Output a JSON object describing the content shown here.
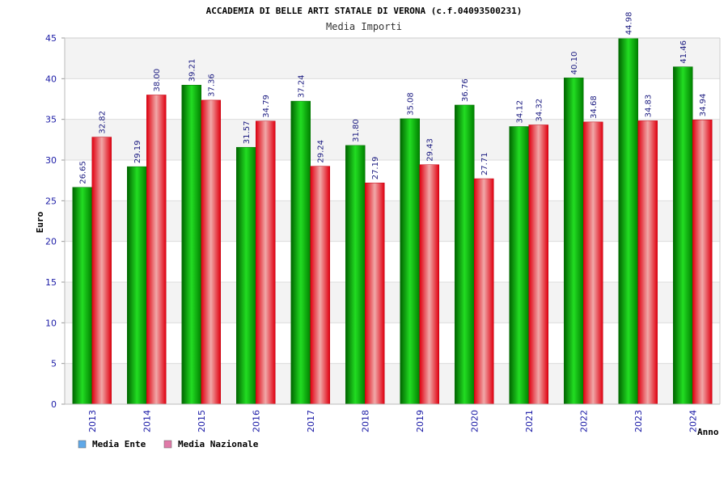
{
  "chart_data": {
    "type": "bar",
    "title": "ACCADEMIA DI BELLE ARTI STATALE DI VERONA (c.f.04093500231)",
    "subtitle": "Media Importi",
    "xlabel": "Anno",
    "ylabel": "Euro",
    "ylim": [
      0,
      45
    ],
    "yticks": [
      0,
      5,
      10,
      15,
      20,
      25,
      30,
      35,
      40,
      45
    ],
    "grid": true,
    "legend_position": "bottom-left",
    "categories": [
      "2013",
      "2014",
      "2015",
      "2016",
      "2017",
      "2018",
      "2019",
      "2020",
      "2021",
      "2022",
      "2023",
      "2024"
    ],
    "series": [
      {
        "name": "Media Ente",
        "color": "#00a800",
        "legend_color": "#5fa8e8",
        "values": [
          26.65,
          29.19,
          39.21,
          31.57,
          37.24,
          31.8,
          35.08,
          36.76,
          34.12,
          40.1,
          44.98,
          41.46
        ],
        "labels": [
          "26.65",
          "29.19",
          "39.21",
          "31.57",
          "37.24",
          "31.80",
          "35.08",
          "36.76",
          "34.12",
          "40.10",
          "44.98",
          "41.46"
        ]
      },
      {
        "name": "Media Nazionale",
        "color": "#e8101a",
        "legend_color": "#e07aa8",
        "values": [
          32.82,
          38.0,
          37.36,
          34.79,
          29.24,
          27.19,
          29.43,
          27.71,
          34.32,
          34.68,
          34.83,
          34.94
        ],
        "labels": [
          "32.82",
          "38.00",
          "37.36",
          "34.79",
          "29.24",
          "27.19",
          "29.43",
          "27.71",
          "34.32",
          "34.68",
          "34.83",
          "34.94"
        ]
      }
    ]
  }
}
